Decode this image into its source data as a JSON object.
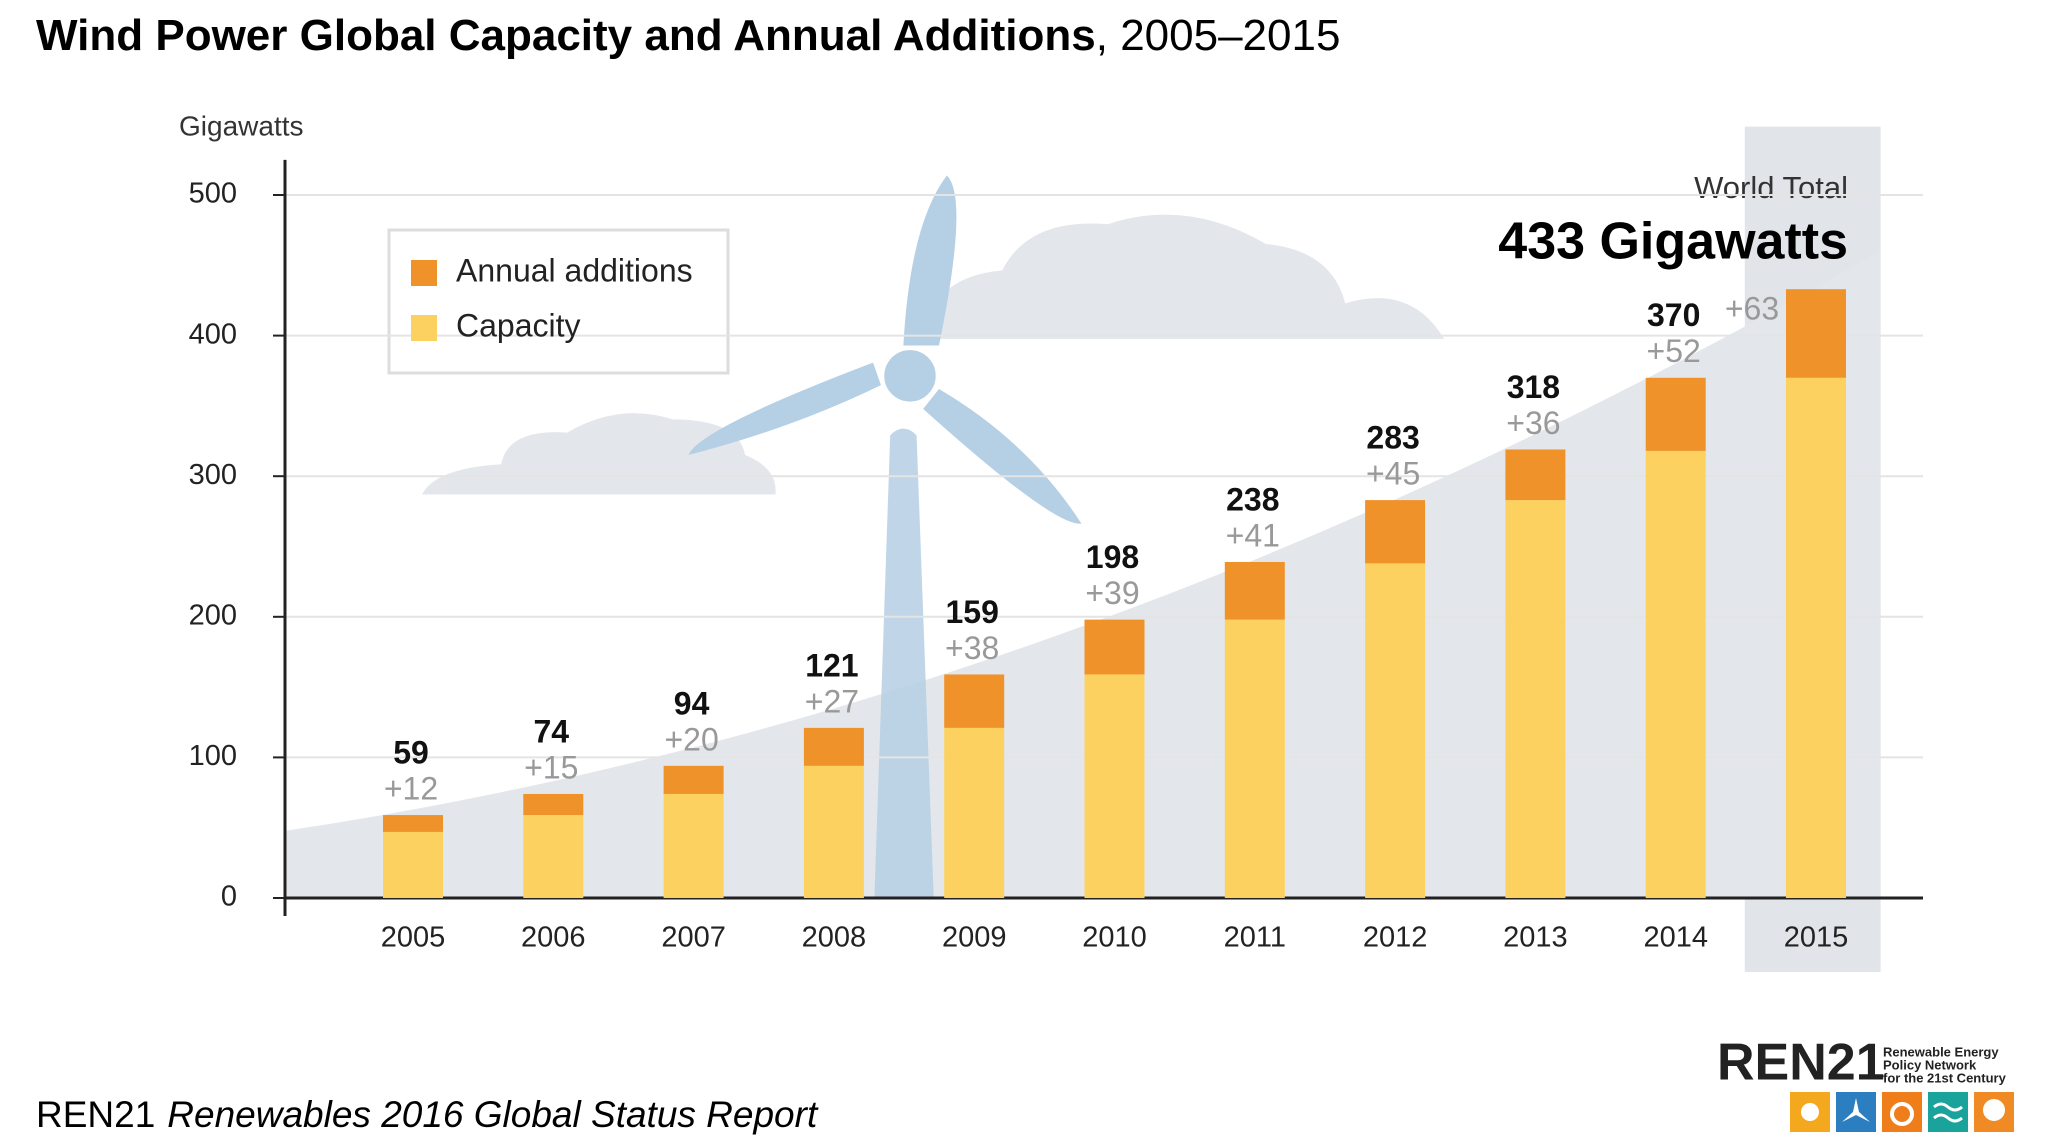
{
  "chart_data": {
    "type": "bar",
    "stacked": true,
    "title": "Wind Power Global Capacity and Annual Additions",
    "subtitle": ", 2005–2015",
    "y_label": "Gigawatts",
    "annotation": {
      "heading": "World Total",
      "value": "433 Gigawatts"
    },
    "categories": [
      "2005",
      "2006",
      "2007",
      "2008",
      "2009",
      "2010",
      "2011",
      "2012",
      "2013",
      "2014",
      "2015"
    ],
    "series": [
      {
        "name": "Annual additions",
        "color": "#f0922a",
        "values": [
          12,
          15,
          20,
          27,
          38,
          39,
          41,
          45,
          36,
          52,
          63
        ],
        "value_labels": [
          "+12",
          "+15",
          "+20",
          "+27",
          "+38",
          "+39",
          "+41",
          "+45",
          "+36",
          "+52",
          "+63"
        ]
      },
      {
        "name": "Capacity",
        "color": "#fdd15f",
        "values": [
          47,
          59,
          74,
          94,
          121,
          159,
          198,
          238,
          283,
          318,
          370
        ]
      }
    ],
    "totals": [
      59,
      74,
      94,
      121,
      159,
      198,
      238,
      283,
      318,
      370,
      null
    ],
    "ylim": [
      0,
      525
    ],
    "yticks": [
      0,
      100,
      200,
      300,
      400,
      500
    ],
    "grid": true,
    "highlight_category": 10,
    "legend": "top-left",
    "source": {
      "org": "REN21",
      "report": "Renewables 2016 Global Status Report"
    },
    "logo": {
      "name": "REN21",
      "lines": [
        "Renewable Energy",
        "Policy Network",
        "for the 21st Century"
      ]
    }
  }
}
